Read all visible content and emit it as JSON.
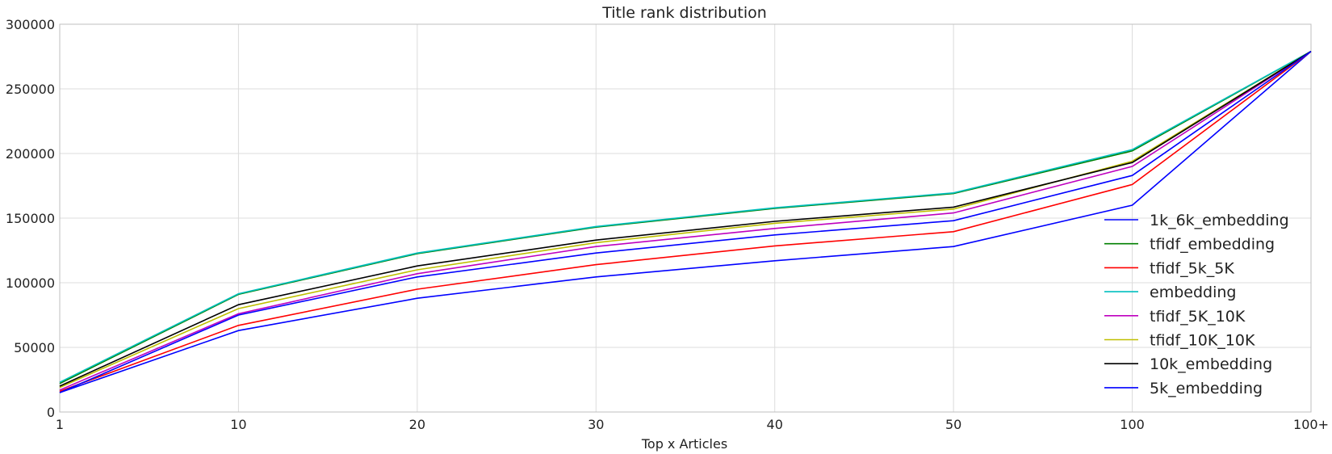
{
  "chart_data": {
    "type": "line",
    "title": "Title rank distribution",
    "xlabel": "Top x Articles",
    "ylabel": "",
    "categories": [
      "1",
      "10",
      "20",
      "30",
      "40",
      "50",
      "100",
      "100+"
    ],
    "ylim": [
      0,
      300000
    ],
    "yticks": [
      0,
      50000,
      100000,
      150000,
      200000,
      250000,
      300000
    ],
    "ytick_labels": [
      "0",
      "50000",
      "100000",
      "150000",
      "200000",
      "250000",
      "300000"
    ],
    "grid": true,
    "legend_position": "lower-right",
    "series": [
      {
        "name": "1k_6k_embedding",
        "color": "#0000ff",
        "values": [
          15000,
          63000,
          88000,
          104500,
          117000,
          128000,
          160000,
          279000
        ]
      },
      {
        "name": "tfidf_embedding",
        "color": "#008000",
        "values": [
          22000,
          91000,
          122500,
          143000,
          157500,
          169000,
          202000,
          279000
        ]
      },
      {
        "name": "tfidf_5k_5K",
        "color": "#ff0000",
        "values": [
          16000,
          67000,
          95000,
          114000,
          128500,
          139500,
          176000,
          279000
        ]
      },
      {
        "name": "embedding",
        "color": "#00bfbf",
        "values": [
          23000,
          91500,
          123000,
          143500,
          158000,
          169500,
          203000,
          279000
        ]
      },
      {
        "name": "tfidf_5K_10K",
        "color": "#bf00bf",
        "values": [
          17000,
          76000,
          107000,
          128000,
          142000,
          154000,
          190000,
          279000
        ]
      },
      {
        "name": "tfidf_10K_10K",
        "color": "#bfbf00",
        "values": [
          19000,
          80000,
          110000,
          131000,
          146000,
          157000,
          194000,
          279000
        ]
      },
      {
        "name": "10k_embedding",
        "color": "#000000",
        "values": [
          20000,
          83000,
          113000,
          133000,
          147500,
          158500,
          193000,
          279000
        ]
      },
      {
        "name": "5k_embedding",
        "color": "#0000ff",
        "values": [
          15000,
          75000,
          104500,
          123000,
          137000,
          148000,
          183000,
          279000
        ]
      }
    ]
  }
}
